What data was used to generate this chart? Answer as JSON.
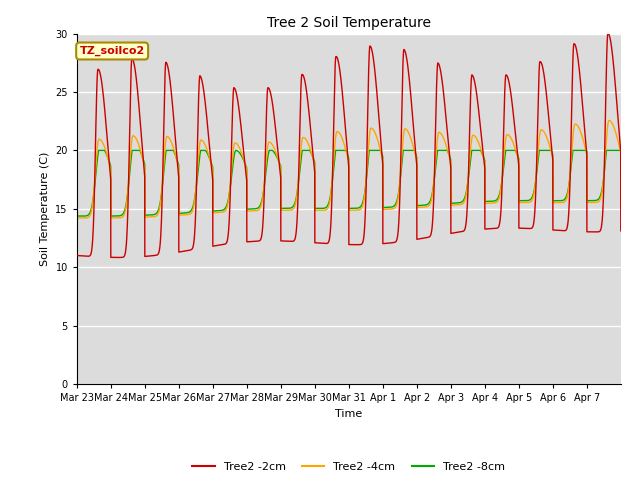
{
  "title": "Tree 2 Soil Temperature",
  "ylabel": "Soil Temperature (C)",
  "xlabel": "Time",
  "annotation": "TZ_soilco2",
  "ylim": [
    0,
    30
  ],
  "yticks": [
    0,
    5,
    10,
    15,
    20,
    25,
    30
  ],
  "background_color": "#dcdcdc",
  "line_colors": {
    "2cm": "#cc0000",
    "4cm": "#ffa500",
    "8cm": "#00aa00"
  },
  "legend_labels": [
    "Tree2 -2cm",
    "Tree2 -4cm",
    "Tree2 -8cm"
  ],
  "x_tick_labels": [
    "Mar 23",
    "Mar 24",
    "Mar 25",
    "Mar 26",
    "Mar 27",
    "Mar 28",
    "Mar 29",
    "Mar 30",
    "Mar 31",
    "Apr 1",
    "Apr 2",
    "Apr 3",
    "Apr 4",
    "Apr 5",
    "Apr 6",
    "Apr 7"
  ],
  "num_days": 16
}
